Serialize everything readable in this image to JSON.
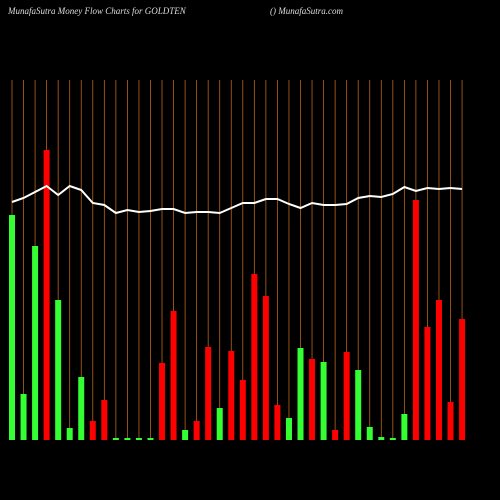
{
  "chart_data": {
    "type": "bar",
    "title": "MunafaSutra  Money Flow  Charts for GOLDTEN",
    "subtitle": "() MunafaSutra.com",
    "categories": [
      null,
      null,
      null,
      null,
      null,
      null,
      null,
      null,
      null,
      null,
      null,
      null,
      null,
      null,
      null,
      null,
      null,
      null,
      null,
      null,
      null,
      null,
      null,
      null,
      null,
      null,
      null,
      null,
      null,
      null,
      null,
      null,
      null,
      null,
      null,
      null,
      null,
      null,
      null,
      null
    ],
    "values": [
      225,
      46,
      194,
      290,
      140,
      12,
      63,
      19,
      40,
      2,
      2,
      2,
      2,
      77,
      129,
      10,
      19,
      93,
      32,
      89,
      60,
      166,
      144,
      35,
      22,
      92,
      81,
      78,
      10,
      88,
      70,
      13,
      3,
      2,
      26,
      240,
      113,
      140,
      38,
      121
    ],
    "colors": [
      "#33ff33",
      "#33ff33",
      "#33ff33",
      "#ff0000",
      "#33ff33",
      "#33ff33",
      "#33ff33",
      "#ff0000",
      "#ff0000",
      "#33ff33",
      "#33ff33",
      "#33ff33",
      "#33ff33",
      "#ff0000",
      "#ff0000",
      "#33ff33",
      "#ff0000",
      "#ff0000",
      "#33ff33",
      "#ff0000",
      "#ff0000",
      "#ff0000",
      "#ff0000",
      "#ff0000",
      "#33ff33",
      "#33ff33",
      "#ff0000",
      "#33ff33",
      "#ff0000",
      "#ff0000",
      "#33ff33",
      "#33ff33",
      "#33ff33",
      "#33ff33",
      "#33ff33",
      "#ff0000",
      "#ff0000",
      "#ff0000",
      "#ff0000",
      "#ff0000"
    ],
    "line": {
      "color": "#ffffff",
      "values": [
        238,
        242,
        248,
        254,
        245,
        254,
        250,
        237,
        235,
        227,
        230,
        228,
        229,
        231,
        231,
        227,
        228,
        228,
        227,
        232,
        237,
        237,
        241,
        241,
        236,
        232,
        237,
        235,
        235,
        236,
        242,
        244,
        243,
        246,
        253,
        249,
        252,
        251,
        252,
        251
      ]
    },
    "grid_color": "#b8651a",
    "ylim": [
      0,
      360
    ]
  }
}
